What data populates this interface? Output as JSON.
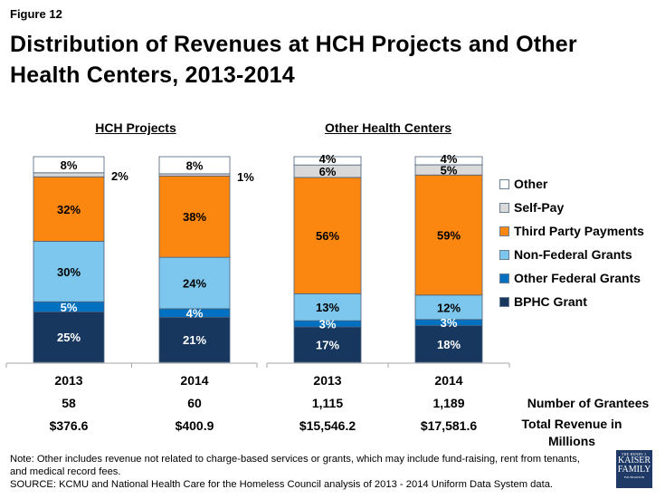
{
  "figure_label": "Figure 12",
  "title": "Distribution of Revenues at HCH Projects and Other Health Centers, 2013-2014",
  "chart_data": {
    "type": "bar",
    "stacked": true,
    "percent_stacked": true,
    "title": "Distribution of Revenues at HCH Projects and Other Health Centers, 2013-2014",
    "groups": [
      "HCH Projects",
      "Other Health Centers"
    ],
    "categories": [
      {
        "group": "HCH Projects",
        "label": "2013"
      },
      {
        "group": "HCH Projects",
        "label": "2014"
      },
      {
        "group": "Other Health Centers",
        "label": "2013"
      },
      {
        "group": "Other Health Centers",
        "label": "2014"
      }
    ],
    "series": [
      {
        "name": "BPHC Grant",
        "color": "#17375e",
        "label_color": "#ffffff",
        "values": [
          25,
          21,
          17,
          18
        ]
      },
      {
        "name": "Other Federal Grants",
        "color": "#0070c0",
        "label_color": "#ffffff",
        "values": [
          5,
          4,
          3,
          3
        ]
      },
      {
        "name": "Non-Federal Grants",
        "color": "#7dc6ed",
        "label_color": "#000000",
        "values": [
          30,
          24,
          13,
          12
        ]
      },
      {
        "name": "Third Party Payments",
        "color": "#fb8711",
        "label_color": "#000000",
        "values": [
          32,
          38,
          56,
          59
        ]
      },
      {
        "name": "Self-Pay",
        "color": "#d9d9d9",
        "label_color": "#000000",
        "values": [
          2,
          1,
          6,
          5
        ]
      },
      {
        "name": "Other",
        "color": "#ffffff",
        "label_color": "#000000",
        "values": [
          8,
          8,
          4,
          4
        ]
      }
    ],
    "data_labels": [
      [
        "25%",
        "5%",
        "30%",
        "32%",
        "2%",
        "8%"
      ],
      [
        "21%",
        "4%",
        "24%",
        "38%",
        "1%",
        "8%"
      ],
      [
        "17%",
        "3%",
        "13%",
        "56%",
        "6%",
        "4%"
      ],
      [
        "18%",
        "3%",
        "12%",
        "59%",
        "5%",
        "4%"
      ]
    ],
    "legend": [
      "Other",
      "Self-Pay",
      "Third Party Payments",
      "Non-Federal Grants",
      "Other Federal Grants",
      "BPHC Grant"
    ],
    "legend_position": "right",
    "ylim": [
      0,
      100
    ],
    "grid": false,
    "table_rows": [
      {
        "label": "Number of Grantees",
        "values": [
          "58",
          "60",
          "1,115",
          "1,189"
        ]
      },
      {
        "label": "Total Revenue in Millions",
        "values": [
          "$376.6",
          "$400.9",
          "$15,546.2",
          "$17,581.6"
        ]
      }
    ]
  },
  "legend": [
    {
      "name": "Other",
      "color": "#ffffff"
    },
    {
      "name": "Self-Pay",
      "color": "#d9d9d9"
    },
    {
      "name": "Third Party Payments",
      "color": "#fb8711"
    },
    {
      "name": "Non-Federal Grants",
      "color": "#7dc6ed"
    },
    {
      "name": "Other Federal Grants",
      "color": "#0070c0"
    },
    {
      "name": "BPHC Grant",
      "color": "#17375e"
    }
  ],
  "groups": {
    "hch": "HCH Projects",
    "other": "Other Health Centers"
  },
  "years": [
    "2013",
    "2014",
    "2013",
    "2014"
  ],
  "grantees": {
    "label": "Number of Grantees",
    "values": [
      "58",
      "60",
      "1,115",
      "1,189"
    ]
  },
  "revenue": {
    "label": "Total Revenue in Millions",
    "values": [
      "$376.6",
      "$400.9",
      "$15,546.2",
      "$17,581.6"
    ]
  },
  "note": "Note: Other includes revenue not related to charge-based services or grants, which may include fund-raising, rent from tenants, and medical record fees.",
  "source": "SOURCE: KCMU and National Health Care for the Homeless Council analysis of 2013 - 2014 Uniform Data System data.",
  "logo": {
    "line1": "THE HENRY J.",
    "line2": "KAISER",
    "line3": "FAMILY",
    "line4": "FOUNDATION"
  }
}
